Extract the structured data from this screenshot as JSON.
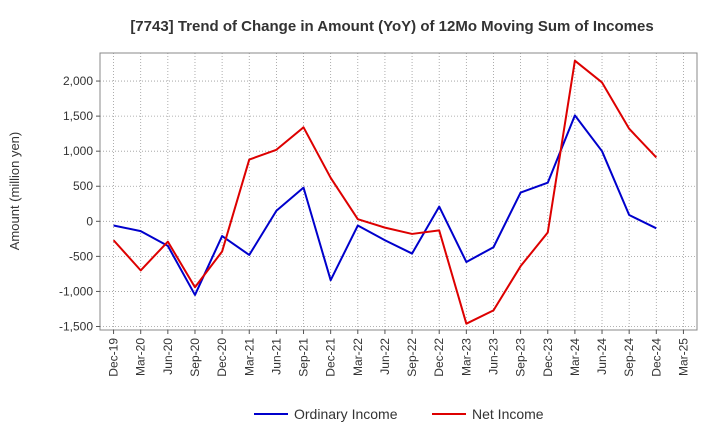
{
  "chart_data": {
    "type": "line",
    "title": "[7743]  Trend of Change in Amount (YoY) of 12Mo Moving Sum of Incomes",
    "ylabel": "Amount (million yen)",
    "xlabel": "",
    "ylim": [
      -1550,
      2400
    ],
    "yticks": [
      -1500,
      -1000,
      -500,
      0,
      500,
      1000,
      1500,
      2000
    ],
    "ytick_labels": [
      "-1,500",
      "-1,000",
      "-500",
      "0",
      "500",
      "1,000",
      "1,500",
      "2,000"
    ],
    "x_tick_labels": [
      "Dec-19",
      "Mar-20",
      "Jun-20",
      "Sep-20",
      "Dec-20",
      "Mar-21",
      "Jun-21",
      "Sep-21",
      "Dec-21",
      "Mar-22",
      "Jun-22",
      "Sep-22",
      "Dec-22",
      "Mar-23",
      "Jun-23",
      "Sep-23",
      "Dec-23",
      "Mar-24",
      "Jun-24",
      "Sep-24",
      "Dec-24",
      "Mar-25"
    ],
    "grid": true,
    "legend_position": "bottom",
    "series": [
      {
        "name": "Ordinary Income",
        "color": "#0000cc",
        "values": [
          -60,
          -140,
          -350,
          -1050,
          -210,
          -480,
          150,
          480,
          -840,
          -60,
          -270,
          -460,
          210,
          -580,
          -370,
          410,
          550,
          1510,
          1000,
          90,
          -100
        ]
      },
      {
        "name": "Net Income",
        "color": "#dd0000",
        "values": [
          -270,
          -700,
          -290,
          -940,
          -430,
          880,
          1020,
          1340,
          620,
          30,
          -90,
          -180,
          -130,
          -1460,
          -1270,
          -640,
          -160,
          2290,
          1980,
          1320,
          910
        ]
      }
    ]
  }
}
